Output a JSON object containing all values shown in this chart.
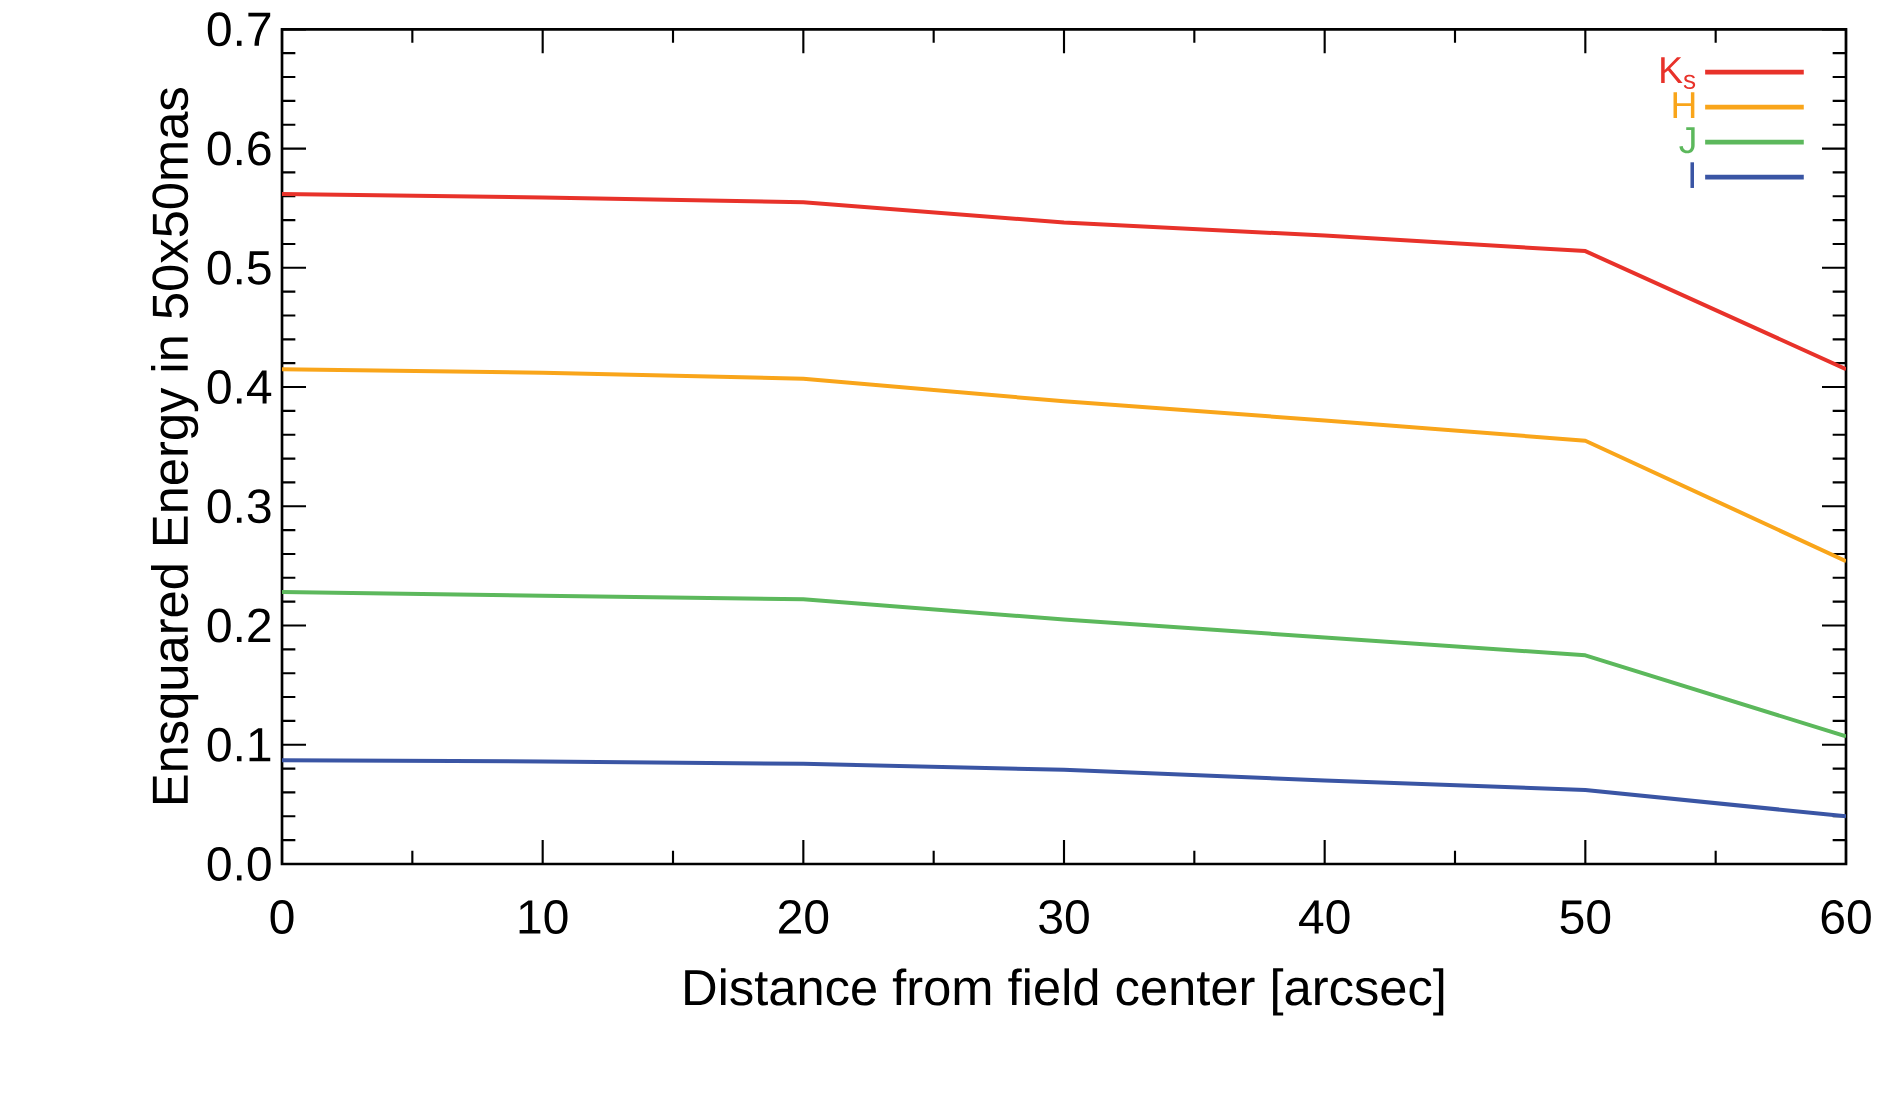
{
  "chart_data": {
    "type": "line",
    "xlabel": "Distance from field center [arcsec]",
    "ylabel": "Ensquared Energy in 50x50mas",
    "x": [
      0,
      10,
      20,
      30,
      40,
      50,
      60
    ],
    "series": [
      {
        "name": "K$_{s}$",
        "color": "#e8322a",
        "values": [
          0.562,
          0.559,
          0.555,
          0.538,
          0.527,
          0.514,
          0.415
        ]
      },
      {
        "name": "H",
        "color": "#f9a51a",
        "values": [
          0.415,
          0.412,
          0.407,
          0.388,
          0.372,
          0.355,
          0.254
        ]
      },
      {
        "name": "J",
        "color": "#5cb85c",
        "values": [
          0.228,
          0.225,
          0.222,
          0.205,
          0.19,
          0.175,
          0.107
        ]
      },
      {
        "name": "I",
        "color": "#3a55a4",
        "values": [
          0.087,
          0.086,
          0.084,
          0.079,
          0.07,
          0.062,
          0.04
        ]
      }
    ],
    "xlim": [
      0,
      60
    ],
    "ylim": [
      0,
      0.7
    ],
    "xticks": [
      0,
      10,
      20,
      30,
      40,
      50,
      60
    ],
    "yticks": [
      {
        "value": 0,
        "label": "0.0"
      },
      0.1,
      0.2,
      0.3,
      0.4,
      0.5,
      0.6,
      0.7
    ],
    "legend": "top right",
    "grid": false,
    "marker": "none",
    "line_style": "solid"
  }
}
